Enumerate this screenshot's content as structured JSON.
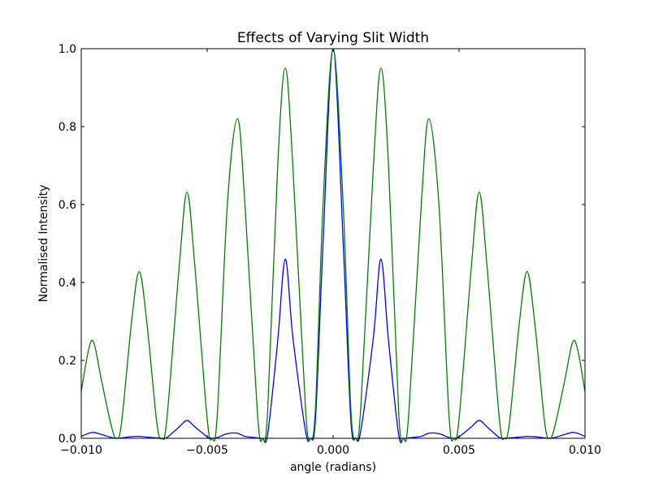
{
  "chart_data": {
    "type": "line",
    "title": "Effects of Varying Slit Width",
    "xlabel": "angle (radians)",
    "ylabel": "Normalised Intensity",
    "xlim": [
      -0.01,
      0.01
    ],
    "ylim": [
      0.0,
      1.0
    ],
    "grid": false,
    "x_ticks": [
      -0.01,
      -0.005,
      0.0,
      0.005,
      0.01
    ],
    "x_tick_labels": [
      "−0.010",
      "−0.005",
      "0.000",
      "0.005",
      "0.010"
    ],
    "y_ticks": [
      0.0,
      0.2,
      0.4,
      0.6,
      0.8,
      1.0
    ],
    "y_tick_labels": [
      "0.0",
      "0.2",
      "0.4",
      "0.6",
      "0.8",
      "1.0"
    ],
    "colors": [
      "#0000ff",
      "#008000"
    ],
    "x": [
      -0.01,
      -0.0097,
      -0.0095,
      -0.0092,
      -0.0088,
      -0.0086,
      -0.0084,
      -0.008,
      -0.0077,
      -0.0074,
      -0.007,
      -0.0068,
      -0.0066,
      -0.0061,
      -0.0058,
      -0.0055,
      -0.005,
      -0.0048,
      -0.0046,
      -0.0042,
      -0.0038,
      -0.0035,
      -0.003,
      -0.0028,
      -0.0026,
      -0.0022,
      -0.0019,
      -0.0016,
      -0.0011,
      -0.0009,
      -0.0007,
      -0.0004,
      0.0,
      0.0004,
      0.0007,
      0.0009,
      0.0011,
      0.0016,
      0.0019,
      0.0022,
      0.0026,
      0.0028,
      0.003,
      0.0035,
      0.0038,
      0.0042,
      0.0046,
      0.0048,
      0.005,
      0.0055,
      0.0058,
      0.0061,
      0.0066,
      0.0068,
      0.007,
      0.0074,
      0.0077,
      0.008,
      0.0084,
      0.0086,
      0.0088,
      0.0092,
      0.0095,
      0.0097,
      0.01
    ],
    "series": [
      {
        "values": [
          0.005,
          0.013,
          0.015,
          0.01,
          0.002,
          0.0,
          0.001,
          0.004,
          0.005,
          0.003,
          0.001,
          0.0,
          0.002,
          0.03,
          0.046,
          0.03,
          0.004,
          0.0,
          0.002,
          0.012,
          0.013,
          0.005,
          0.001,
          0.0,
          0.01,
          0.25,
          0.46,
          0.26,
          0.02,
          0.0,
          0.05,
          0.5,
          1.0,
          0.5,
          0.05,
          0.0,
          0.02,
          0.26,
          0.46,
          0.25,
          0.01,
          0.0,
          0.001,
          0.005,
          0.013,
          0.012,
          0.002,
          0.0,
          0.004,
          0.03,
          0.046,
          0.03,
          0.002,
          0.0,
          0.001,
          0.003,
          0.005,
          0.004,
          0.001,
          0.0,
          0.002,
          0.01,
          0.015,
          0.013,
          0.005
        ]
      },
      {
        "values": [
          0.12,
          0.23,
          0.245,
          0.15,
          0.03,
          0.0,
          0.04,
          0.3,
          0.428,
          0.3,
          0.04,
          0.0,
          0.05,
          0.45,
          0.632,
          0.45,
          0.05,
          0.0,
          0.06,
          0.6,
          0.82,
          0.6,
          0.06,
          0.0,
          0.07,
          0.7,
          0.95,
          0.7,
          0.08,
          0.0,
          0.08,
          0.6,
          1.0,
          0.6,
          0.08,
          0.0,
          0.08,
          0.7,
          0.95,
          0.7,
          0.07,
          0.0,
          0.06,
          0.6,
          0.82,
          0.6,
          0.06,
          0.0,
          0.05,
          0.45,
          0.632,
          0.45,
          0.05,
          0.0,
          0.04,
          0.3,
          0.428,
          0.3,
          0.04,
          0.0,
          0.03,
          0.15,
          0.245,
          0.23,
          0.12
        ]
      }
    ]
  }
}
